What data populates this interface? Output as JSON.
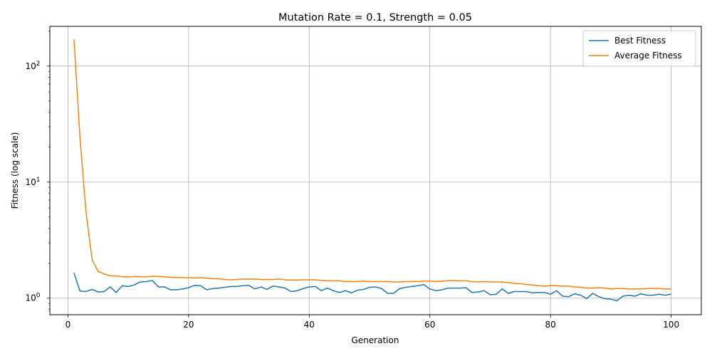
{
  "chart_data": {
    "type": "line",
    "title": "Mutation Rate = 0.1, Strength = 0.05",
    "xlabel": "Generation",
    "ylabel": "Fitness (log scale)",
    "xlim": [
      -3,
      105
    ],
    "ylim": [
      0.72,
      220
    ],
    "yscale": "log",
    "grid": true,
    "legend_position": "top-right",
    "x_ticks": [
      0,
      20,
      40,
      60,
      80,
      100
    ],
    "y_ticks": [
      {
        "value": 1,
        "label": "10^0"
      },
      {
        "value": 10,
        "label": "10^1"
      },
      {
        "value": 100,
        "label": "10^2"
      }
    ],
    "series": [
      {
        "name": "Best Fitness",
        "color": "#1f77b4",
        "x_start": 1,
        "values": [
          1.65,
          1.15,
          1.14,
          1.19,
          1.13,
          1.14,
          1.25,
          1.12,
          1.28,
          1.26,
          1.3,
          1.38,
          1.39,
          1.42,
          1.25,
          1.25,
          1.18,
          1.18,
          1.2,
          1.23,
          1.29,
          1.28,
          1.18,
          1.21,
          1.22,
          1.24,
          1.26,
          1.26,
          1.28,
          1.29,
          1.2,
          1.25,
          1.19,
          1.27,
          1.25,
          1.22,
          1.14,
          1.16,
          1.21,
          1.25,
          1.26,
          1.16,
          1.22,
          1.16,
          1.12,
          1.16,
          1.11,
          1.17,
          1.19,
          1.24,
          1.25,
          1.21,
          1.1,
          1.1,
          1.21,
          1.24,
          1.26,
          1.28,
          1.31,
          1.2,
          1.16,
          1.18,
          1.22,
          1.22,
          1.22,
          1.23,
          1.12,
          1.13,
          1.16,
          1.07,
          1.08,
          1.2,
          1.1,
          1.14,
          1.14,
          1.14,
          1.11,
          1.12,
          1.12,
          1.08,
          1.16,
          1.04,
          1.03,
          1.09,
          1.06,
          0.99,
          1.1,
          1.03,
          0.99,
          0.98,
          0.95,
          1.04,
          1.06,
          1.04,
          1.09,
          1.06,
          1.06,
          1.08,
          1.06,
          1.08
        ]
      },
      {
        "name": "Average Fitness",
        "color": "#ff7f0e",
        "x_start": 1,
        "values": [
          170,
          24,
          5.5,
          2.15,
          1.7,
          1.62,
          1.56,
          1.55,
          1.53,
          1.52,
          1.54,
          1.53,
          1.53,
          1.54,
          1.54,
          1.53,
          1.51,
          1.51,
          1.5,
          1.5,
          1.49,
          1.5,
          1.49,
          1.47,
          1.47,
          1.45,
          1.44,
          1.45,
          1.46,
          1.46,
          1.46,
          1.45,
          1.45,
          1.45,
          1.46,
          1.44,
          1.43,
          1.43,
          1.44,
          1.44,
          1.44,
          1.42,
          1.41,
          1.41,
          1.41,
          1.39,
          1.39,
          1.39,
          1.4,
          1.39,
          1.39,
          1.39,
          1.39,
          1.38,
          1.38,
          1.39,
          1.39,
          1.39,
          1.4,
          1.4,
          1.39,
          1.4,
          1.41,
          1.42,
          1.41,
          1.41,
          1.39,
          1.38,
          1.39,
          1.38,
          1.38,
          1.38,
          1.36,
          1.34,
          1.33,
          1.31,
          1.3,
          1.28,
          1.27,
          1.28,
          1.28,
          1.27,
          1.27,
          1.25,
          1.24,
          1.22,
          1.22,
          1.23,
          1.22,
          1.2,
          1.21,
          1.21,
          1.2,
          1.2,
          1.2,
          1.21,
          1.21,
          1.21,
          1.2,
          1.2
        ]
      }
    ]
  }
}
